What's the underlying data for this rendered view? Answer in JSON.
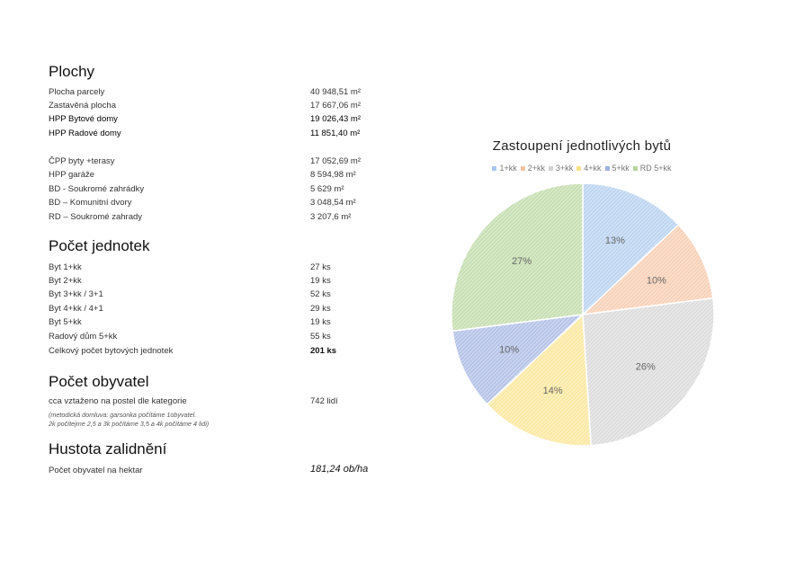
{
  "sections": {
    "plochy": {
      "title": "Plochy",
      "rows": [
        {
          "label": "Plocha parcely",
          "value": "40 948,51 m²"
        },
        {
          "label": "Zastavěná plocha",
          "value": "17 667,06 m²"
        },
        {
          "label": "HPP Bytové domy",
          "value": "19 026,43 m²"
        },
        {
          "label": "HPP Radové domy",
          "value": "11 851,40 m²"
        },
        {
          "label": "ČPP byty +terasy",
          "value": "17 052,69 m²"
        },
        {
          "label": "HPP garáže",
          "value": " 8 594,98 m²"
        },
        {
          "label": "BD - Soukromé zahrádky",
          "value": "5 629 m²"
        },
        {
          "label": "BD – Komunitní dvory",
          "value": "3 048,54 m²"
        },
        {
          "label": "RD – Soukromé zahrady",
          "value": "3 207,6 m²"
        }
      ]
    },
    "jednotky": {
      "title": "Počet jednotek",
      "rows": [
        {
          "label": "Byt 1+kk",
          "value": "27 ks"
        },
        {
          "label": "Byt 2+kk",
          "value": "19 ks"
        },
        {
          "label": "Byt 3+kk / 3+1",
          "value": "52 ks"
        },
        {
          "label": "Byt 4+kk / 4+1",
          "value": "29 ks"
        },
        {
          "label": "Byt 5+kk",
          "value": "19 ks"
        },
        {
          "label": "Radový dům 5+kk",
          "value": "55 ks"
        },
        {
          "label": "Celkový počet bytových jednotek",
          "value": "201 ks"
        }
      ]
    },
    "obyvatel": {
      "title": "Počet obyvatel",
      "rows": [
        {
          "label": "cca vztaženo na postel dle kategorie",
          "value": "742 lidí"
        }
      ],
      "note_line1": "(metodická domluva: garsonka počítáme 1obyvatel.",
      "note_line2": "2k počítejme 2,5 a  3k počítáme 3,5 a 4k počítáme 4 lidi)"
    },
    "hustota": {
      "title": "Hustota zalidnění",
      "rows": [
        {
          "label": "Počet obyvatel na hektar",
          "value": "181,24 ob/ha"
        }
      ]
    }
  },
  "chart_data": {
    "type": "pie",
    "title": "Zastoupení jednotlivých bytů",
    "legend_position": "top",
    "categories": [
      "1+kk",
      "2+kk",
      "3+kk",
      "4+kk",
      "5+kk",
      "RD 5+kk"
    ],
    "values": [
      13,
      10,
      26,
      14,
      10,
      27
    ],
    "labels": [
      "13%",
      "10%",
      "26%",
      "14%",
      "10%",
      "27%"
    ],
    "colors": [
      "#a9c8ec",
      "#f6c3a2",
      "#d2d2d2",
      "#f9e287",
      "#9fb1e0",
      "#b5d59a"
    ],
    "start_angle_deg": 0,
    "direction": "clockwise"
  }
}
